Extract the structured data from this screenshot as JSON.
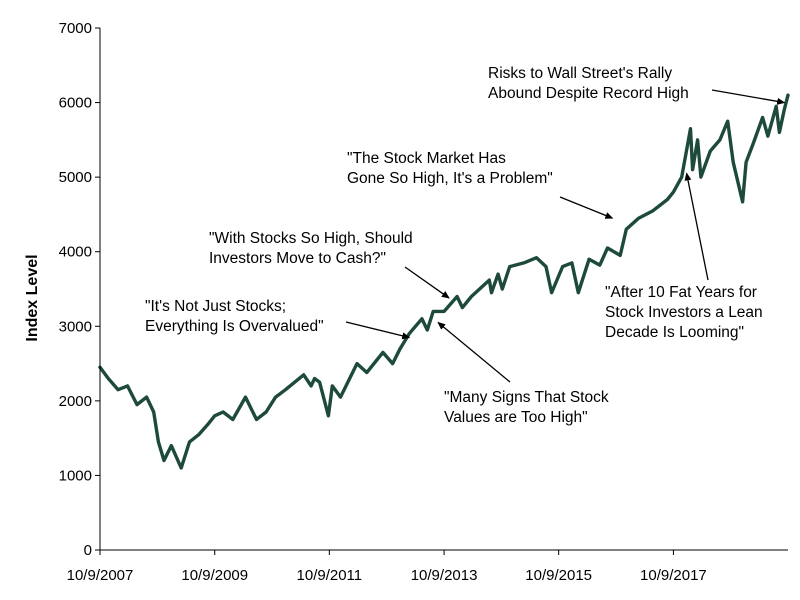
{
  "chart_data": {
    "type": "line",
    "title": "",
    "xlabel": "",
    "ylabel": "Index Level",
    "ylim": [
      0,
      7000
    ],
    "xlim": [
      "2007-10-09",
      "2019-10-09"
    ],
    "yticks": [
      0,
      1000,
      2000,
      3000,
      4000,
      5000,
      6000,
      7000
    ],
    "xticks": [
      "10/9/2007",
      "10/9/2009",
      "10/9/2011",
      "10/9/2013",
      "10/9/2015",
      "10/9/2017"
    ],
    "grid": false,
    "legend": "none",
    "colors": {
      "line": "#1d4a3c",
      "axis": "#000000",
      "arrow": "#000000"
    },
    "series": [
      {
        "x": [
          "2007-10-09",
          "2007-12-01",
          "2008-02-01",
          "2008-04-01",
          "2008-06-01",
          "2008-08-01",
          "2008-09-15",
          "2008-10-15",
          "2008-11-20",
          "2009-01-05",
          "2009-03-09",
          "2009-05-01",
          "2009-07-01",
          "2009-09-01",
          "2009-10-09",
          "2009-12-01",
          "2010-02-01",
          "2010-04-23",
          "2010-07-02",
          "2010-09-01",
          "2010-11-01",
          "2011-01-03",
          "2011-04-29",
          "2011-06-15",
          "2011-07-07",
          "2011-08-08",
          "2011-10-03",
          "2011-10-28",
          "2011-12-19",
          "2012-04-02",
          "2012-06-04",
          "2012-09-14",
          "2012-11-15",
          "2013-01-02",
          "2013-03-01",
          "2013-05-21",
          "2013-06-24",
          "2013-08-01",
          "2013-10-09",
          "2013-12-31",
          "2014-02-03",
          "2014-04-01",
          "2014-07-24",
          "2014-08-07",
          "2014-09-18",
          "2014-10-15",
          "2014-12-01",
          "2015-03-01",
          "2015-05-21",
          "2015-07-20",
          "2015-08-25",
          "2015-11-03",
          "2016-01-01",
          "2016-02-11",
          "2016-04-20",
          "2016-06-27",
          "2016-08-15",
          "2016-11-04",
          "2016-12-13",
          "2017-03-01",
          "2017-06-01",
          "2017-09-01",
          "2017-10-09",
          "2017-12-01",
          "2018-01-26",
          "2018-02-08",
          "2018-03-12",
          "2018-04-02",
          "2018-06-01",
          "2018-08-01",
          "2018-09-20",
          "2018-10-25",
          "2018-12-24",
          "2019-01-15",
          "2019-03-01",
          "2019-04-30",
          "2019-06-03",
          "2019-07-26",
          "2019-08-15",
          "2019-09-15",
          "2019-10-09"
        ],
        "y": [
          2450,
          2300,
          2150,
          2200,
          1950,
          2050,
          1850,
          1450,
          1200,
          1400,
          1100,
          1450,
          1550,
          1700,
          1800,
          1850,
          1750,
          2050,
          1750,
          1850,
          2050,
          2150,
          2350,
          2200,
          2300,
          2250,
          1800,
          2200,
          2050,
          2500,
          2380,
          2650,
          2500,
          2700,
          2900,
          3100,
          2950,
          3200,
          3200,
          3400,
          3250,
          3400,
          3620,
          3450,
          3700,
          3500,
          3800,
          3850,
          3920,
          3800,
          3450,
          3800,
          3850,
          3450,
          3900,
          3820,
          4050,
          3950,
          4300,
          4450,
          4550,
          4700,
          4800,
          5000,
          5650,
          5100,
          5500,
          5000,
          5350,
          5500,
          5750,
          5200,
          4670,
          5200,
          5450,
          5800,
          5550,
          5950,
          5600,
          5900,
          6100
        ]
      }
    ],
    "annotations": [
      {
        "lines": [
          "Risks to Wall Street's Rally",
          "Abound Despite Record High"
        ],
        "at": [
          "2019-09-15",
          6000
        ]
      },
      {
        "lines": [
          "\"The Stock Market Has",
          "Gone So High, It's a Problem\""
        ],
        "at": [
          "2016-09-15",
          4450
        ]
      },
      {
        "lines": [
          "\"With Stocks So High, Should",
          "Investors Move to Cash?\""
        ],
        "at": [
          "2013-11-09",
          3380
        ]
      },
      {
        "lines": [
          "\"It's Not Just Stocks;",
          "Everything Is Overvalued\""
        ],
        "at": [
          "2013-03-01",
          2850
        ]
      },
      {
        "lines": [
          "\"Many Signs That Stock",
          "Values are Too High\""
        ],
        "at": [
          "2013-09-01",
          3050
        ]
      },
      {
        "lines": [
          "\"After 10 Fat Years for",
          "Stock Investors a Lean",
          "Decade Is Looming\""
        ],
        "at": [
          "2018-01-01",
          5050
        ]
      }
    ]
  }
}
